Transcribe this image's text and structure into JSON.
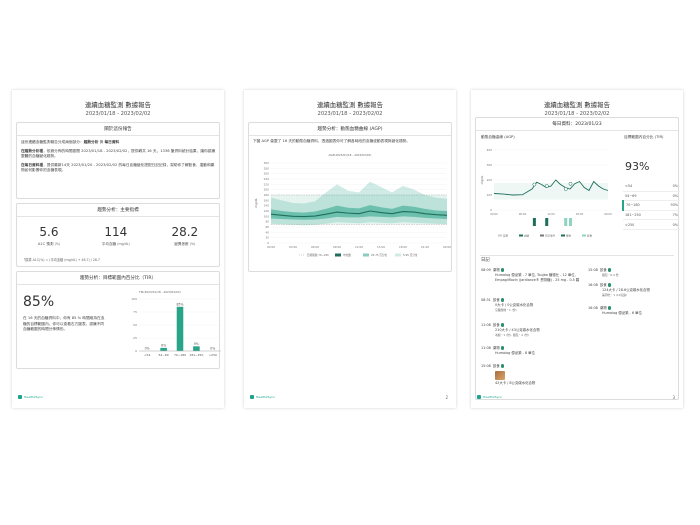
{
  "report": {
    "title": "連續血糖監測 數據報告",
    "range": "2023/01/18 - 2023/02/02"
  },
  "brand": {
    "name": "Health2Sync",
    "accent": "#2aa488",
    "logo_icon": "h2s-logo-icon"
  },
  "page1": {
    "about": {
      "heading": "關於這份報告",
      "p1_pre": "這份連續血糖監測報告分成兩個部分：",
      "p1_b1": "趨勢分析",
      "p1_mid": " 與 ",
      "p1_b2": "每日資料",
      "p2_label": "在趨勢分析裡",
      "p2_text": "，依據分佈的時間區間 2023/01/18 - 2023/02/02，提供轉共 16 天，1336 筆資料統計結果，讓你認識整體的血糖變化趨勢。",
      "p3_label": "在每日資料裡",
      "p3_text": "，提供最新14天 2023/01/20 - 2023/02/02 的每日血糖變化搭配日記記錄，幫助你了解飲食、運動和藥物如何影響你的血糖表現。"
    },
    "key": {
      "heading": "趨勢分析：主要指標",
      "metrics": [
        {
          "value": "5.6",
          "label": "A1C 預測",
          "unit": "(%)"
        },
        {
          "value": "114",
          "label": "平均血糖",
          "unit": "(mg/dL)"
        },
        {
          "value": "28.2",
          "label": "變異係數",
          "unit": "(%)"
        }
      ],
      "note": "「換算 A1C(%) = (平均血糖 (mg/dL) + 46.7) / 28.7"
    },
    "tir": {
      "heading": "趨勢分析：目標範圍內百分比（TIR）",
      "pct": "85%",
      "desc": "在 16 天的血糖資料中，你有 85 % 時間維持在血糖的目標範圍內。你可以查看右方圖表，認識不同血糖範圍的時間分佈情形。",
      "chart_caption": "TIR(2023/01/18 - 2023/02/02)"
    }
  },
  "page2": {
    "heading": "趨勢分析：動態血糖曲線 (AGP)",
    "desc": "下圖 AGP 彙整了 16 天的動態血糖資料，透過圖表你可了解各時段的血糖波動表現與變化趨勢。",
    "chart_title": "AGP(2023/01/18 - 2023/02/02)",
    "ylabel": "mg/dL",
    "legend": [
      "目標範圍 70~180",
      "中位數",
      "25-75 百分位",
      "5-95 百分位"
    ],
    "page_number": "2"
  },
  "page3": {
    "heading": "每日資料：2023/01/23",
    "cgm_title": "動態血糖曲線 (AGP)",
    "ylabel": "mg/dL",
    "legend": [
      "目標",
      "血糖",
      "日記事件",
      "藥物",
      "飲食"
    ],
    "tir_title": "目標範圍內百分比 (TIR)",
    "tir_pct": "93%",
    "tir_rows": [
      {
        "range": "<54",
        "pct": "0%"
      },
      {
        "range": "54~69",
        "pct": "0%"
      },
      {
        "range": "70~180",
        "pct": "93%"
      },
      {
        "range": "181~250",
        "pct": "7%"
      },
      {
        "range": ">250",
        "pct": "0%"
      }
    ],
    "diary_title": "日記",
    "log_left": [
      {
        "time": "08:09",
        "type": "藥物",
        "text": "Humalog 優泌樂 - 7 單位, Toujeo 糖德仕 - 12 單位, Empagliflozin (Jardiance® 恩排糖) - 25 mg - 0.5 顆"
      },
      {
        "time": "08:31",
        "type": "飲食",
        "text": "0大卡 / 0公克碳水化合物",
        "sub": "空腹醒前・1 (份)"
      },
      {
        "time": "11:08",
        "type": "飲食",
        "text": "210大卡 / 43公克碳水化合物",
        "sub": "冰蝦・1 (份), 麵包・2 (份)"
      },
      {
        "time": "11:08",
        "type": "藥物",
        "text": "Humalog 優泌樂 - 8 單位"
      },
      {
        "time": "15:08",
        "type": "飲食",
        "text": "42大卡 / 8公克碳水化合物"
      }
    ],
    "log_right": [
      {
        "time": "15:08",
        "type": "飲食",
        "text": "麵包・0.4 份"
      },
      {
        "time": "16:08",
        "type": "飲食",
        "text": "124大卡 / 28.6公克碳水化合物",
        "sub": "美周吃・1 (10克餅)"
      },
      {
        "time": "16:08",
        "type": "藥物",
        "text": "Humalog 優泌樂 - 6 單位"
      }
    ],
    "page_number": "3"
  },
  "chart_data": [
    {
      "type": "bar",
      "title": "TIR(2023/01/18 - 2023/02/02)",
      "categories": [
        "<54",
        "54~69",
        "70~180",
        "181~250",
        ">250"
      ],
      "values": [
        0,
        6,
        85,
        9,
        0
      ],
      "value_labels": [
        "0%",
        "6%",
        "85%",
        "9%",
        "0%"
      ],
      "ylim": [
        0,
        100
      ],
      "yticks": [
        0,
        25,
        50,
        75,
        100
      ],
      "color": "#2aa488"
    },
    {
      "type": "line",
      "title": "AGP(2023/01/18 - 2023/02/02)",
      "xlabel": "",
      "ylabel": "mg/dL",
      "x_ticks": [
        "00:00",
        "03:00",
        "06:00",
        "09:00",
        "12:00",
        "15:00",
        "18:00",
        "21:00",
        "00:00"
      ],
      "y_ticks": [
        0,
        20,
        40,
        60,
        80,
        100,
        120,
        140,
        160,
        180,
        200,
        220,
        240,
        260,
        280,
        300
      ],
      "ylim": [
        0,
        300
      ],
      "target_range": [
        70,
        180
      ],
      "x_hours": [
        0,
        1.5,
        3,
        4.5,
        6,
        7.5,
        9,
        10.5,
        12,
        13.5,
        15,
        16.5,
        18,
        19.5,
        21,
        22.5,
        24
      ],
      "series": [
        {
          "name": "中位數",
          "values": [
            108,
            104,
            100,
            99,
            101,
            108,
            116,
            112,
            110,
            120,
            114,
            110,
            118,
            116,
            110,
            106,
            104
          ]
        },
        {
          "name": "25-75 百分位",
          "low": [
            92,
            90,
            88,
            87,
            88,
            92,
            98,
            96,
            96,
            100,
            98,
            96,
            100,
            98,
            94,
            92,
            90
          ],
          "high": [
            126,
            120,
            116,
            114,
            118,
            128,
            140,
            132,
            130,
            142,
            134,
            128,
            140,
            136,
            128,
            122,
            120
          ]
        },
        {
          "name": "5-95 百分位",
          "low": [
            72,
            70,
            68,
            66,
            68,
            72,
            78,
            76,
            74,
            78,
            76,
            74,
            78,
            76,
            74,
            72,
            70
          ],
          "high": [
            170,
            160,
            150,
            148,
            156,
            190,
            220,
            196,
            190,
            230,
            210,
            190,
            214,
            200,
            180,
            170,
            166
          ]
        }
      ]
    },
    {
      "type": "line",
      "title": "動態血糖曲線 (AGP)",
      "ylabel": "mg/dL",
      "x_ticks": [
        "00:00",
        "06:00",
        "12:00",
        "18:00",
        "00:00"
      ],
      "y_ticks": [
        0,
        100,
        200,
        300,
        400
      ],
      "ylim": [
        0,
        400
      ],
      "target_range": [
        70,
        180
      ],
      "x_hours": [
        0,
        2,
        4,
        6,
        8,
        9,
        10,
        11,
        12,
        13,
        14,
        15,
        16,
        17,
        18,
        19,
        20,
        21,
        22,
        23,
        24
      ],
      "series": [
        {
          "name": "血糖",
          "values": [
            110,
            106,
            100,
            102,
            140,
            185,
            170,
            150,
            160,
            200,
            170,
            150,
            140,
            175,
            190,
            150,
            130,
            190,
            160,
            140,
            130
          ]
        }
      ],
      "event_bars": [
        {
          "hour": 8.5,
          "kind": "藥物"
        },
        {
          "hour": 11.1,
          "kind": "藥物"
        },
        {
          "hour": 15.1,
          "kind": "飲食"
        },
        {
          "hour": 16.1,
          "kind": "飲食"
        }
      ]
    }
  ]
}
